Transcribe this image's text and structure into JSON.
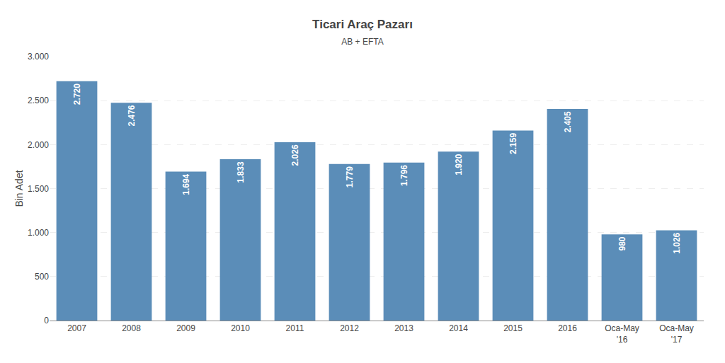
{
  "chart_data": {
    "type": "bar",
    "title": "Ticari Araç Pazarı",
    "subtitle": "AB + EFTA",
    "ylabel": "Bin Adet",
    "categories": [
      "2007",
      "2008",
      "2009",
      "2010",
      "2011",
      "2012",
      "2013",
      "2014",
      "2015",
      "2016",
      "Oca-May\n'16",
      "Oca-May\n'17"
    ],
    "values": [
      2720,
      2476,
      1694,
      1833,
      2026,
      1779,
      1796,
      1920,
      2159,
      2405,
      980,
      1026
    ],
    "value_labels": [
      "2.720",
      "2.476",
      "1.694",
      "1.833",
      "2.026",
      "1.779",
      "1.796",
      "1.920",
      "2.159",
      "2.405",
      "980",
      "1.026"
    ],
    "data_labels": true,
    "color": "#5B8DB8",
    "ylim": [
      0,
      3000
    ],
    "yticks": [
      0,
      500,
      {
        "value": 1000,
        "label": "1.000"
      },
      {
        "value": 1500,
        "label": "1.500"
      },
      {
        "value": 2000,
        "label": "2.000"
      },
      {
        "value": 2500,
        "label": "2.500"
      },
      {
        "value": 3000,
        "label": "3.000"
      }
    ],
    "grid": true
  }
}
